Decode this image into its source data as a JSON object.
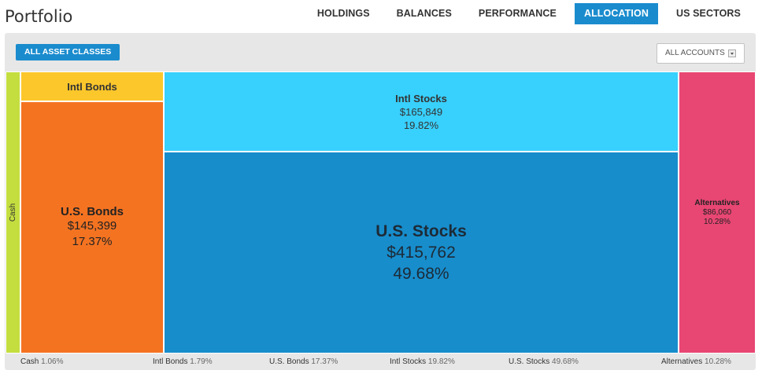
{
  "page": {
    "title": "Portfolio"
  },
  "nav": {
    "tabs": [
      {
        "label": "HOLDINGS"
      },
      {
        "label": "BALANCES"
      },
      {
        "label": "PERFORMANCE"
      },
      {
        "label": "ALLOCATION",
        "active": true
      },
      {
        "label": "US SECTORS"
      }
    ]
  },
  "toolbar": {
    "all_asset_classes_label": "ALL ASSET CLASSES",
    "accounts_select_value": "ALL ACCOUNTS"
  },
  "colors": {
    "accent": "#1a8cce",
    "cash": "#c4dd3f",
    "intl_bonds": "#fcc72b",
    "us_bonds": "#f47321",
    "intl_stocks": "#38d0fc",
    "us_stocks": "#178dcc",
    "alternatives": "#e84673"
  },
  "allocation": {
    "cash": {
      "name": "Cash",
      "pct": "1.06%"
    },
    "intl_bonds": {
      "name": "Intl Bonds",
      "pct": "1.79%"
    },
    "us_bonds": {
      "name": "U.S. Bonds",
      "value": "$145,399",
      "pct": "17.37%"
    },
    "intl_stocks": {
      "name": "Intl Stocks",
      "value": "$165,849",
      "pct": "19.82%"
    },
    "us_stocks": {
      "name": "U.S. Stocks",
      "value": "$415,762",
      "pct": "49.68%"
    },
    "alternatives": {
      "name": "Alternatives",
      "value": "$86,060",
      "pct": "10.28%"
    }
  }
}
